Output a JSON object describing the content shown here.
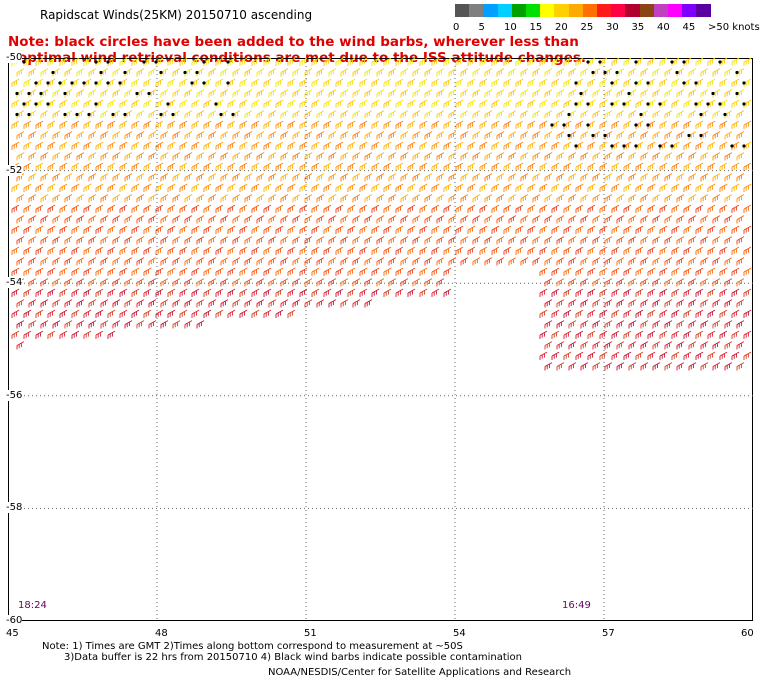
{
  "header": {
    "title": "Rapidscat Winds(25KM) 20150710 ascending"
  },
  "note": {
    "line1": "Note: black circles have been added to the wind barbs, wherever less than",
    "line2": "optimal wind retrieval conditions are met due to the ISS attitude changes."
  },
  "scale": {
    "colors": [
      "#555555",
      "#7f7f7f",
      "#00a0ff",
      "#00d0ff",
      "#00a000",
      "#00e000",
      "#ffff00",
      "#ffd000",
      "#ffaa00",
      "#ff7000",
      "#ff1a1a",
      "#ff0044",
      "#b00030",
      "#8b4513",
      "#c040c0",
      "#ff00ff",
      "#8000ff",
      "#5a00a0"
    ],
    "labels": [
      "0",
      "5",
      "10",
      "15",
      "20",
      "25",
      "30",
      "35",
      "40",
      "45",
      ">50 knots"
    ]
  },
  "map": {
    "lat_labels": [
      "-50",
      "-52",
      "-54",
      "-56",
      "-58",
      "-60"
    ],
    "lon_labels": [
      "45",
      "48",
      "51",
      "54",
      "57",
      "60"
    ],
    "times": [
      "18:24",
      "16:49"
    ]
  },
  "footer": {
    "footnote_line1": "Note: 1) Times are GMT 2)Times along bottom correspond to measurement at ~50S",
    "footnote_line2": "3)Data buffer is 22 hrs from 20150710 4) Black wind barbs indicate possible contamination",
    "credit": "NOAA/NESDIS/Center for Satellite Applications and Research"
  }
}
